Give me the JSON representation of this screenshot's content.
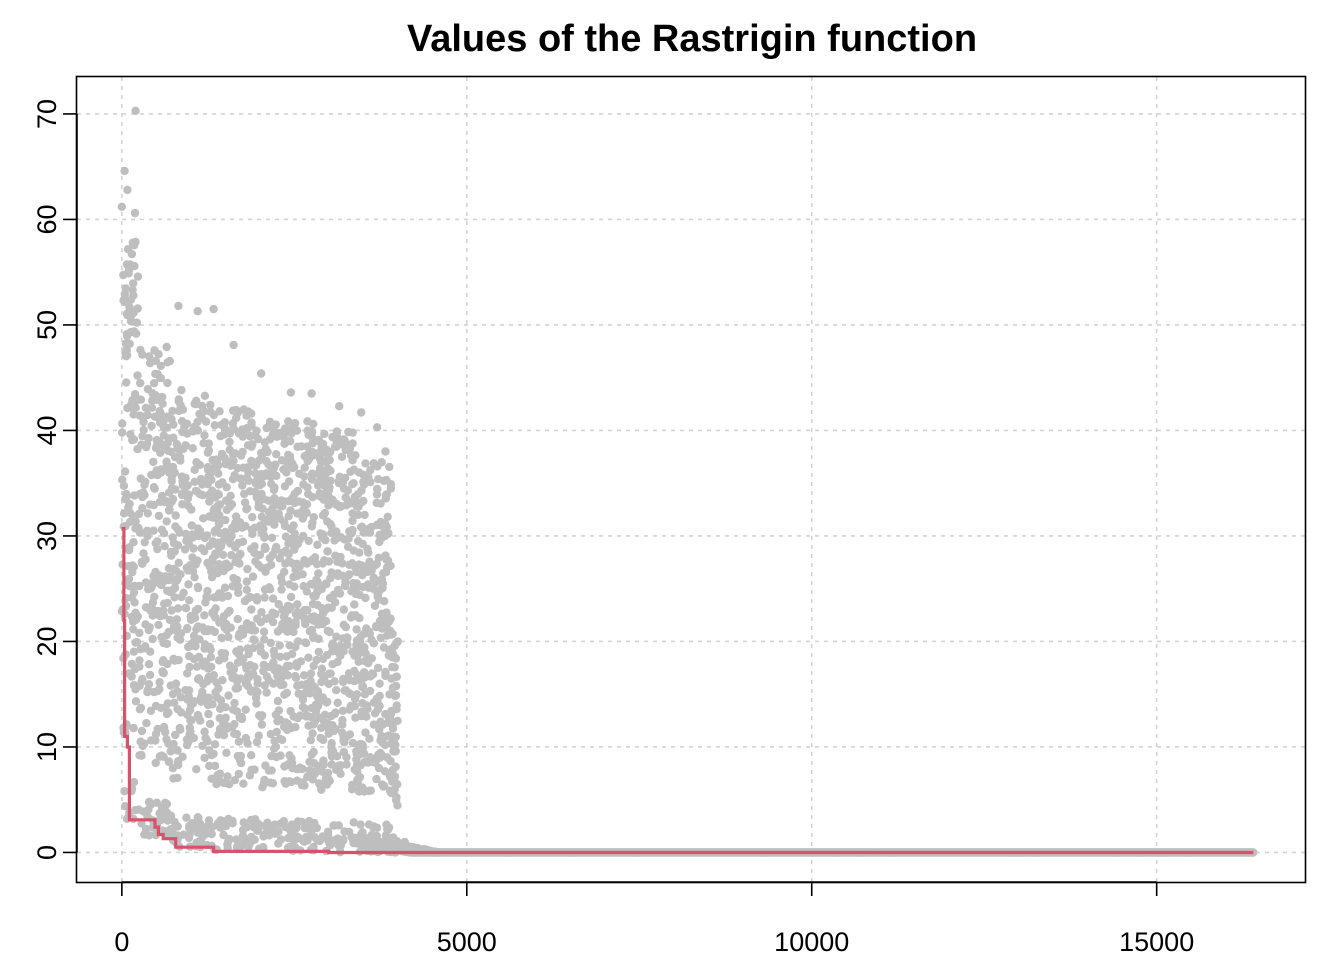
{
  "chart_data": {
    "type": "scatter",
    "title": "Values of the Rastrigin function",
    "xlabel": "",
    "ylabel": "",
    "xlim": [
      -650,
      17150
    ],
    "ylim": [
      -2.8,
      73.5
    ],
    "x_ticks": [
      0,
      5000,
      10000,
      15000
    ],
    "y_ticks": [
      0,
      10,
      20,
      30,
      40,
      50,
      60,
      70
    ],
    "grid": true,
    "legend": "none",
    "series": [
      {
        "type": "scatter",
        "color": "#bebebe",
        "point_count": 16400,
        "description_points": [
          {
            "x": 200,
            "y": 70.3
          },
          {
            "x": 40,
            "y": 64.6
          },
          {
            "x": 80,
            "y": 62.8
          },
          {
            "x": 190,
            "y": 60.6
          },
          {
            "x": 0,
            "y": 61.2
          },
          {
            "x": 820,
            "y": 51.8
          },
          {
            "x": 1100,
            "y": 51.3
          },
          {
            "x": 1330,
            "y": 51.5
          },
          {
            "x": 1620,
            "y": 48.1
          },
          {
            "x": 2020,
            "y": 45.4
          },
          {
            "x": 2450,
            "y": 43.6
          },
          {
            "x": 2750,
            "y": 43.5
          },
          {
            "x": 3150,
            "y": 42.3
          },
          {
            "x": 3470,
            "y": 41.7
          },
          {
            "x": 3700,
            "y": 40.3
          },
          {
            "x": 3820,
            "y": 38.0
          },
          {
            "x": 3900,
            "y": 34.5
          },
          {
            "x": 4000,
            "y": 20.0
          },
          {
            "x": 3850,
            "y": 9.0
          },
          {
            "x": 4100,
            "y": 1.0
          },
          {
            "x": 4400,
            "y": 0.3
          },
          {
            "x": 16400,
            "y": 0.0
          }
        ],
        "bands": [
          {
            "x_from": 0,
            "x_to": 250,
            "y_low": 3.0,
            "y_high": 58.0
          },
          {
            "x_from": 250,
            "x_to": 700,
            "y_low": 1.5,
            "y_high": 48.0
          },
          {
            "x_from": 700,
            "x_to": 1300,
            "y_low": 0.5,
            "y_high": 44.0
          },
          {
            "x_from": 1300,
            "x_to": 2000,
            "y_low": 0.2,
            "y_high": 42.0
          },
          {
            "x_from": 2000,
            "x_to": 2800,
            "y_low": 0.1,
            "y_high": 41.0
          },
          {
            "x_from": 2800,
            "x_to": 3400,
            "y_low": 0.0,
            "y_high": 40.0
          },
          {
            "x_from": 3400,
            "x_to": 3900,
            "y_low": 0.0,
            "y_high": 37.0
          },
          {
            "x_from": 3900,
            "x_to": 4000,
            "y_low": 0.0,
            "y_high": 21.0
          }
        ]
      },
      {
        "type": "step",
        "color": "#d6526d",
        "points": [
          {
            "x": 0,
            "y": 30.7
          },
          {
            "x": 30,
            "y": 22.0
          },
          {
            "x": 40,
            "y": 11.0
          },
          {
            "x": 80,
            "y": 10.0
          },
          {
            "x": 110,
            "y": 3.1
          },
          {
            "x": 480,
            "y": 2.4
          },
          {
            "x": 530,
            "y": 1.7
          },
          {
            "x": 600,
            "y": 1.3
          },
          {
            "x": 780,
            "y": 0.5
          },
          {
            "x": 1330,
            "y": 0.1
          },
          {
            "x": 3000,
            "y": 0.0
          },
          {
            "x": 16400,
            "y": 0.0
          }
        ]
      }
    ]
  }
}
